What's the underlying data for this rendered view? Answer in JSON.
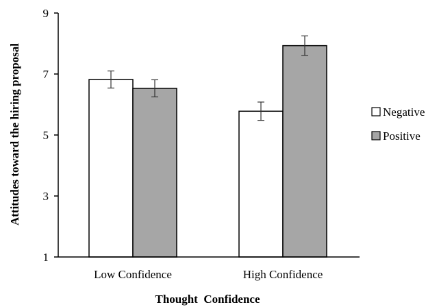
{
  "chart_data": {
    "type": "bar",
    "categories": [
      "Low Confidence",
      "High Confidence"
    ],
    "series": [
      {
        "name": "Negative",
        "values": [
          6.82,
          5.78
        ],
        "error": [
          0.28,
          0.3
        ],
        "color": "#ffffff"
      },
      {
        "name": "Positive",
        "values": [
          6.53,
          7.93
        ],
        "error": [
          0.28,
          0.32
        ],
        "color": "#a6a6a6"
      }
    ],
    "xlabel": "Thought  Confidence",
    "ylabel": "Attitudes toward the hiring proposal",
    "ylim": [
      1,
      9
    ],
    "yticks": [
      "1",
      "3",
      "5",
      "7",
      "9"
    ],
    "grid": false,
    "legend": "right"
  }
}
